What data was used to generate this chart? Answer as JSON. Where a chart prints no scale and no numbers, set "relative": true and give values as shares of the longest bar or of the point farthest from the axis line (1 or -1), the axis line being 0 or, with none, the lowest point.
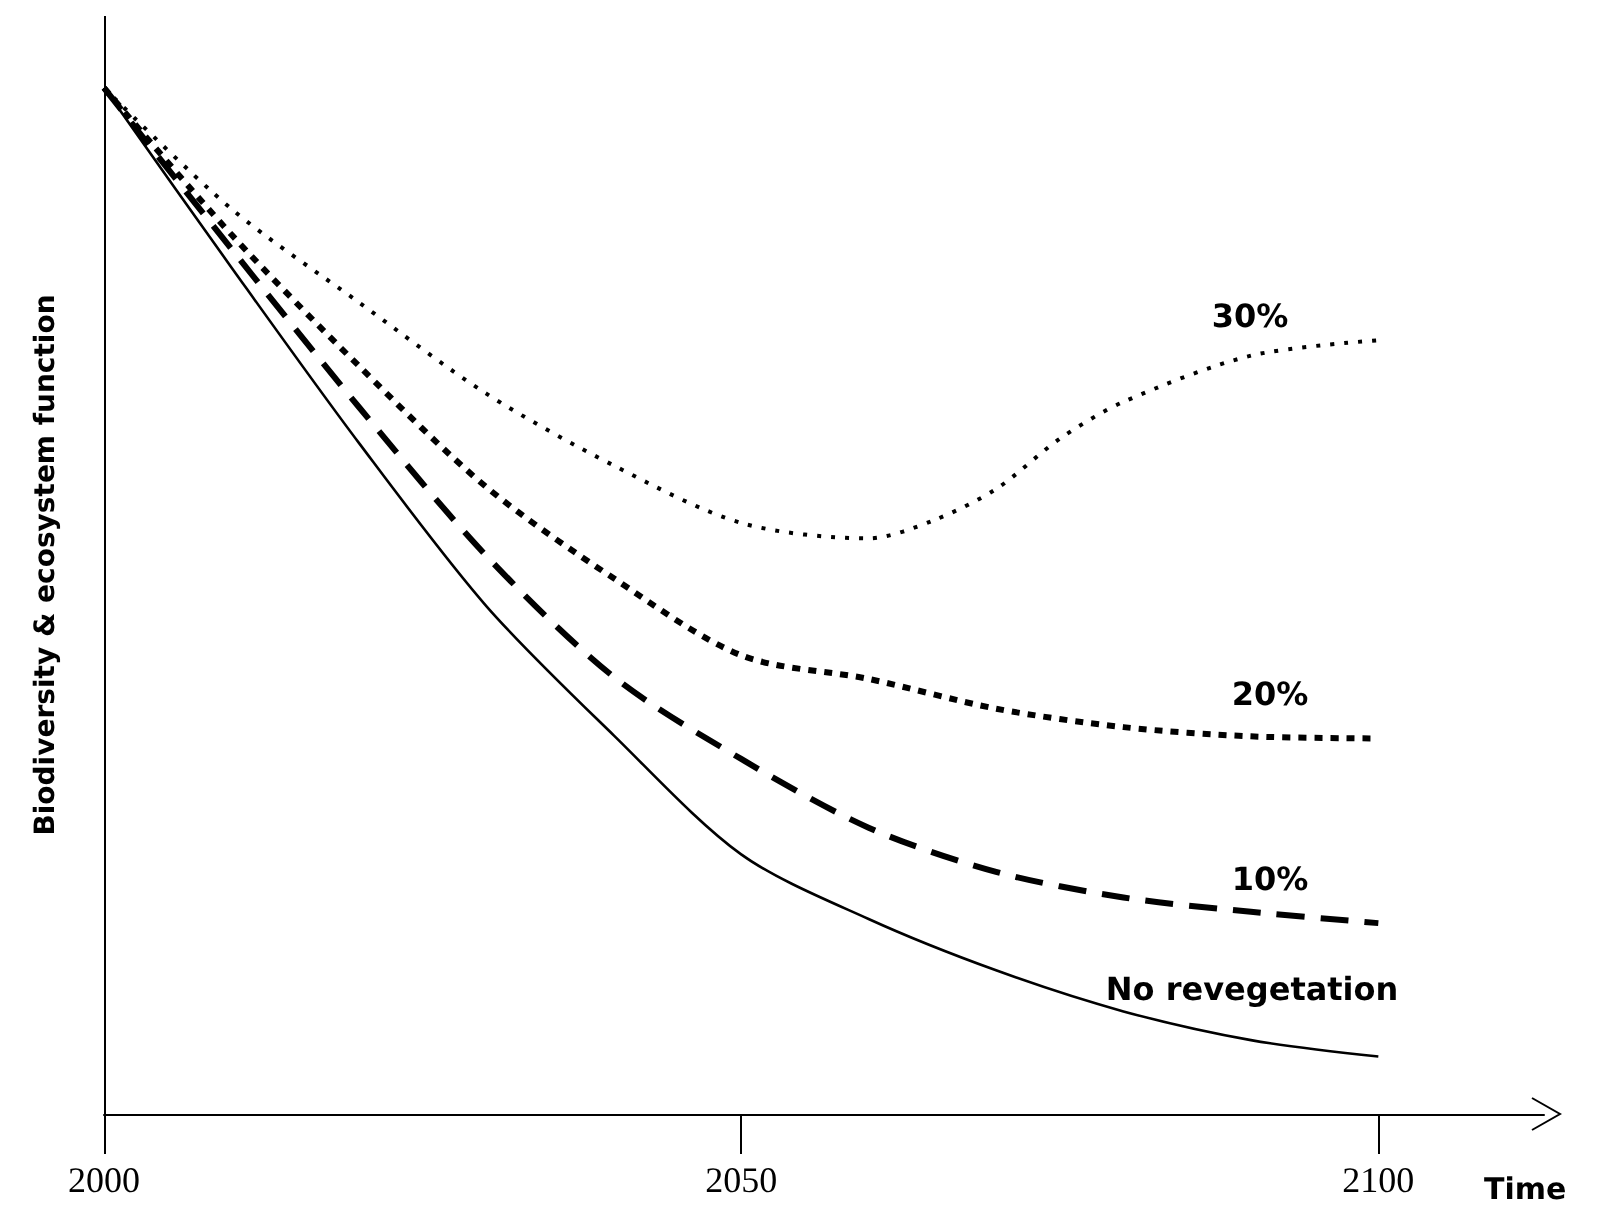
{
  "chart_data": {
    "type": "line",
    "xlabel": "Time",
    "ylabel": "Biodiversity & ecosystem function",
    "relative": true,
    "x": [
      2000,
      2010,
      2020,
      2030,
      2040,
      2050,
      2060,
      2070,
      2080,
      2090,
      2100
    ],
    "xlim": [
      2000,
      2113
    ],
    "xticks": [
      2000,
      2050,
      2100
    ],
    "tick_labels": "x",
    "grid": false,
    "legend": false,
    "marker": "none",
    "series": [
      {
        "name": "No revegetation",
        "color": "#000000",
        "line_style": "solid",
        "values": [
          1,
          0.825,
          0.654,
          0.495,
          0.369,
          0.253,
          0.19,
          0.14,
          0.1,
          0.072,
          0.056
        ]
      },
      {
        "name": "10%",
        "color": "#000000",
        "line_style": "dashed",
        "values": [
          1,
          0.843,
          0.689,
          0.544,
          0.426,
          0.346,
          0.279,
          0.236,
          0.211,
          0.197,
          0.186
        ]
      },
      {
        "name": "20%",
        "color": "#000000",
        "line_style": "dotted",
        "values": [
          1,
          0.857,
          0.729,
          0.611,
          0.522,
          0.447,
          0.424,
          0.395,
          0.377,
          0.368,
          0.366
        ]
      },
      {
        "name": "30%",
        "color": "#000000",
        "line_style": "dotted",
        "x": [
          2000,
          2010,
          2020,
          2030,
          2040,
          2050,
          2060,
          2065,
          2070,
          2075,
          2080,
          2090,
          2100
        ],
        "values": [
          1,
          0.882,
          0.791,
          0.702,
          0.632,
          0.576,
          0.561,
          0.578,
          0.609,
          0.658,
          0.694,
          0.739,
          0.754
        ]
      }
    ]
  }
}
